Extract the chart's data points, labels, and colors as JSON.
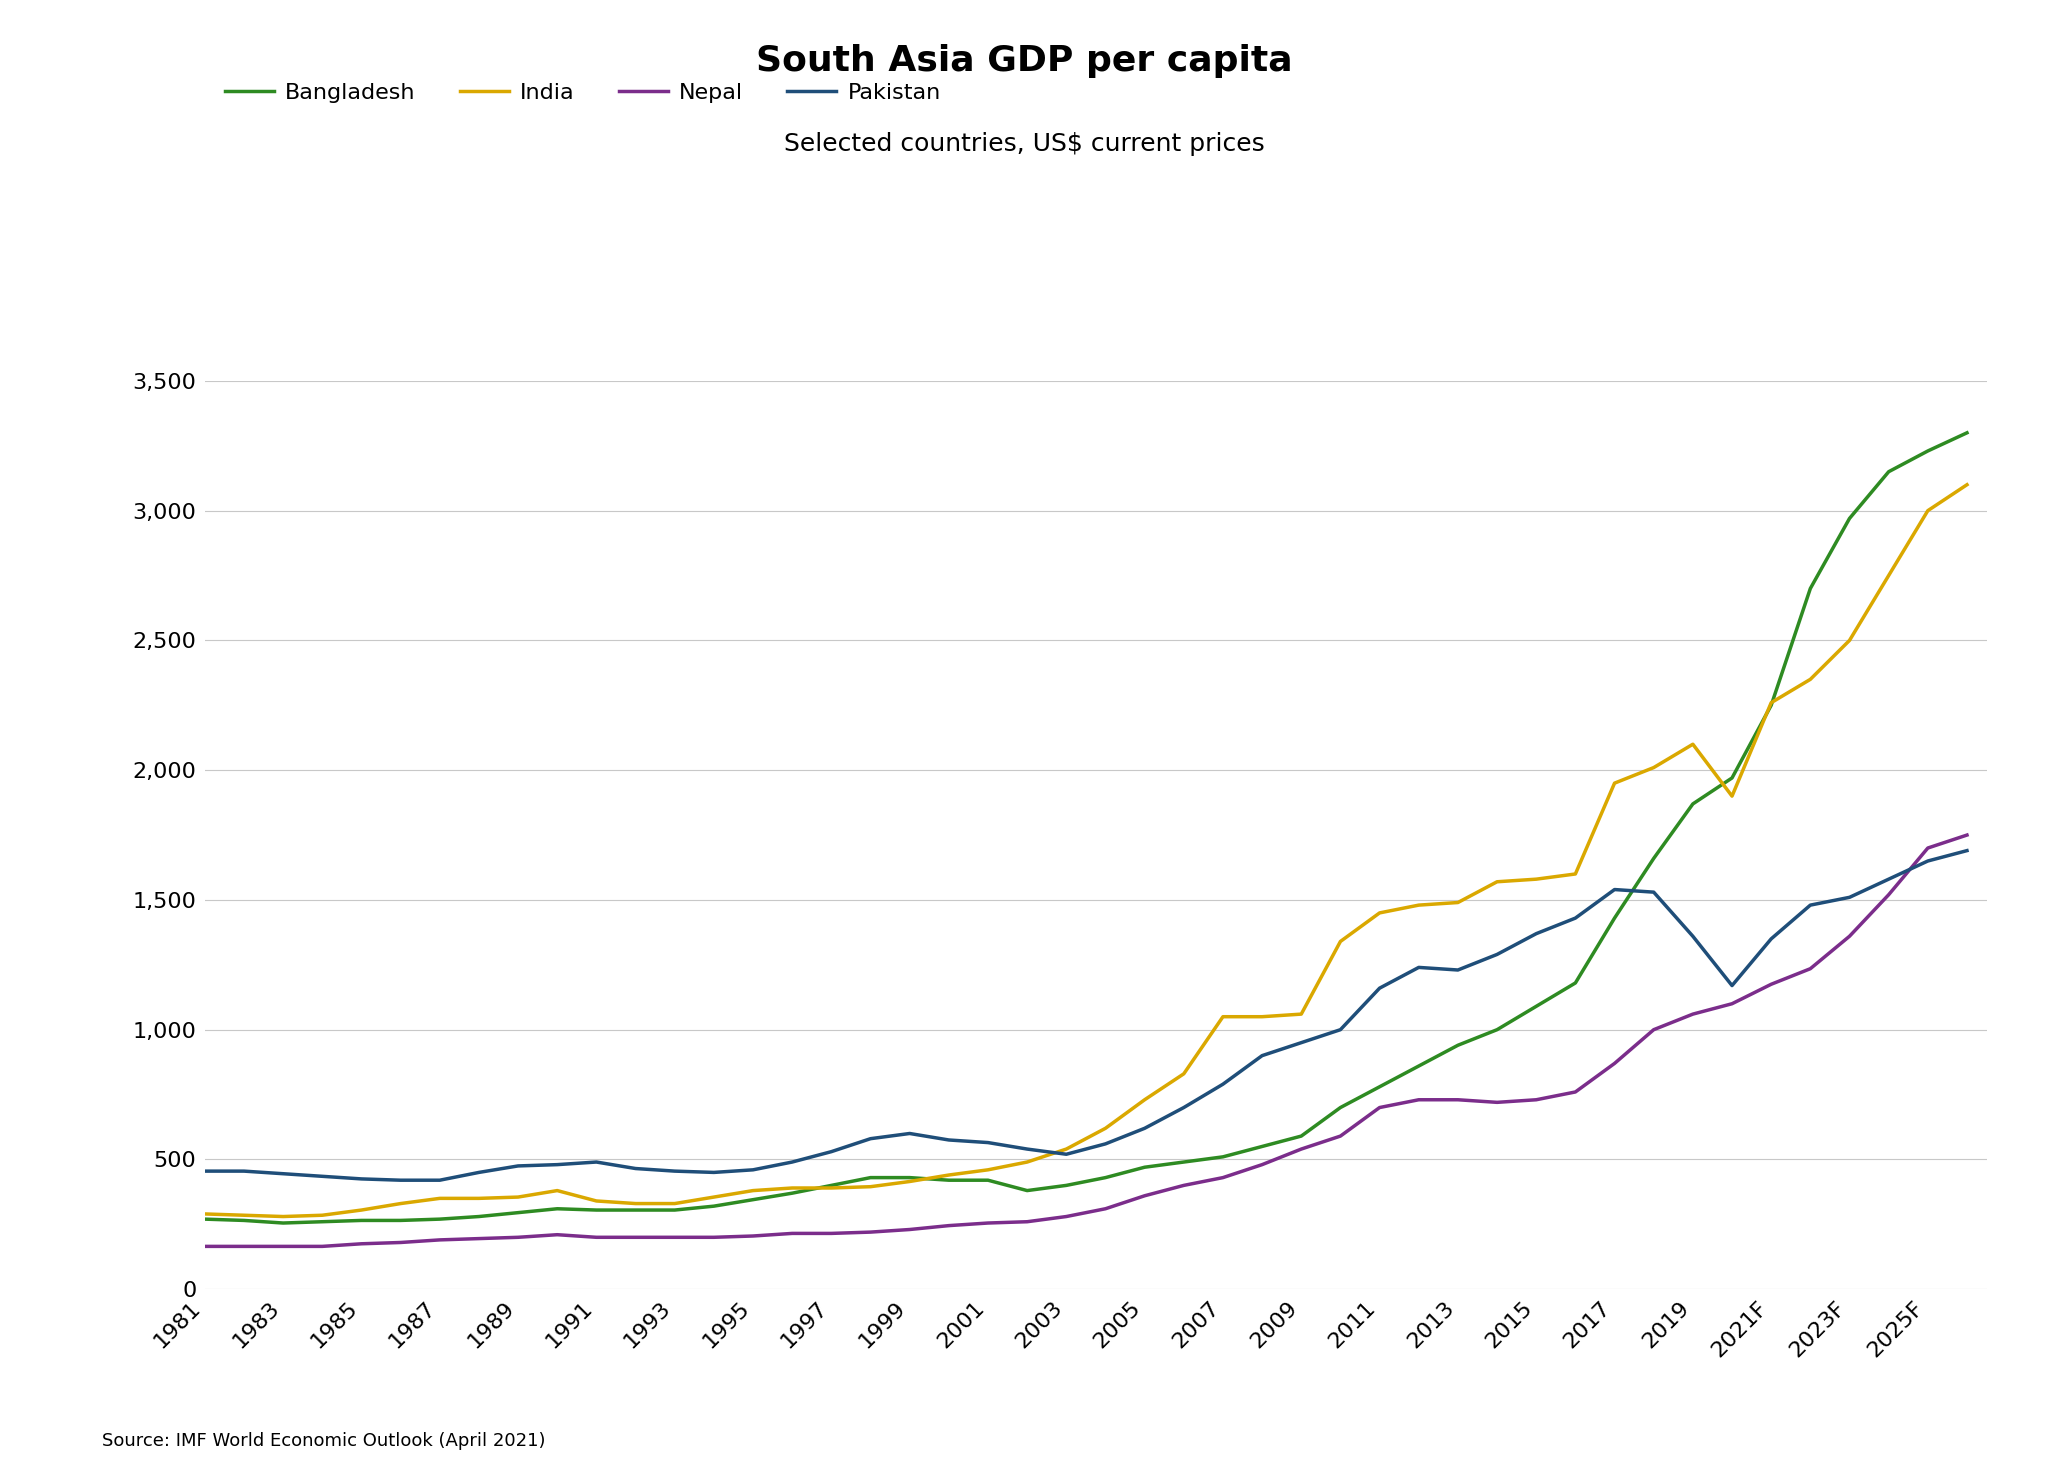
{
  "title": "South Asia GDP per capita",
  "subtitle": "Selected countries, US$ current prices",
  "source": "Source: IMF World Economic Outlook (April 2021)",
  "years": [
    1981,
    1982,
    1983,
    1984,
    1985,
    1986,
    1987,
    1988,
    1989,
    1990,
    1991,
    1992,
    1993,
    1994,
    1995,
    1996,
    1997,
    1998,
    1999,
    2000,
    2001,
    2002,
    2003,
    2004,
    2005,
    2006,
    2007,
    2008,
    2009,
    2010,
    2011,
    2012,
    2013,
    2014,
    2015,
    2016,
    2017,
    2018,
    2019,
    2020,
    2021,
    2022,
    2023,
    2024,
    2025,
    2026
  ],
  "xlabels": [
    "1981",
    "1983",
    "1985",
    "1987",
    "1989",
    "1991",
    "1993",
    "1995",
    "1997",
    "1999",
    "2001",
    "2003",
    "2005",
    "2007",
    "2009",
    "2011",
    "2013",
    "2015",
    "2017",
    "2019",
    "2021F",
    "2023F",
    "2025F"
  ],
  "xtick_years": [
    1981,
    1983,
    1985,
    1987,
    1989,
    1991,
    1993,
    1995,
    1997,
    1999,
    2001,
    2003,
    2005,
    2007,
    2009,
    2011,
    2013,
    2015,
    2017,
    2019,
    2021,
    2023,
    2025
  ],
  "bangladesh": [
    270,
    265,
    255,
    260,
    265,
    265,
    270,
    280,
    295,
    310,
    305,
    305,
    305,
    320,
    345,
    370,
    400,
    430,
    430,
    420,
    420,
    380,
    400,
    430,
    470,
    490,
    510,
    550,
    590,
    700,
    780,
    860,
    940,
    1000,
    1090,
    1180,
    1430,
    1660,
    1870,
    1970,
    2250,
    2700,
    2970,
    3150,
    3230,
    3300
  ],
  "india": [
    290,
    285,
    280,
    285,
    305,
    330,
    350,
    350,
    355,
    380,
    340,
    330,
    330,
    355,
    380,
    390,
    390,
    395,
    415,
    440,
    460,
    490,
    540,
    620,
    730,
    830,
    1050,
    1050,
    1060,
    1340,
    1450,
    1480,
    1490,
    1570,
    1580,
    1600,
    1950,
    2010,
    2100,
    1900,
    2260,
    2350,
    2500,
    2750,
    3000,
    3100
  ],
  "nepal": [
    165,
    165,
    165,
    165,
    175,
    180,
    190,
    195,
    200,
    210,
    200,
    200,
    200,
    200,
    205,
    215,
    215,
    220,
    230,
    245,
    255,
    260,
    280,
    310,
    360,
    400,
    430,
    480,
    540,
    590,
    700,
    730,
    730,
    720,
    730,
    760,
    870,
    1000,
    1060,
    1100,
    1175,
    1235,
    1360,
    1520,
    1700,
    1750
  ],
  "pakistan": [
    455,
    455,
    445,
    435,
    425,
    420,
    420,
    450,
    475,
    480,
    490,
    465,
    455,
    450,
    460,
    490,
    530,
    580,
    600,
    575,
    565,
    540,
    520,
    560,
    620,
    700,
    790,
    900,
    950,
    1000,
    1160,
    1240,
    1230,
    1290,
    1370,
    1430,
    1540,
    1530,
    1360,
    1170,
    1350,
    1480,
    1510,
    1580,
    1650,
    1690
  ],
  "colors": {
    "bangladesh": "#2E8B22",
    "india": "#DAA800",
    "nepal": "#7B2D8B",
    "pakistan": "#1F4E79"
  },
  "ylim": [
    0,
    3500
  ],
  "yticks": [
    0,
    500,
    1000,
    1500,
    2000,
    2500,
    3000,
    3500
  ],
  "background_color": "#ffffff",
  "grid_color": "#c8c8c8",
  "title_fontsize": 26,
  "subtitle_fontsize": 18,
  "tick_fontsize": 16,
  "legend_fontsize": 16,
  "source_fontsize": 13,
  "line_width": 2.5
}
